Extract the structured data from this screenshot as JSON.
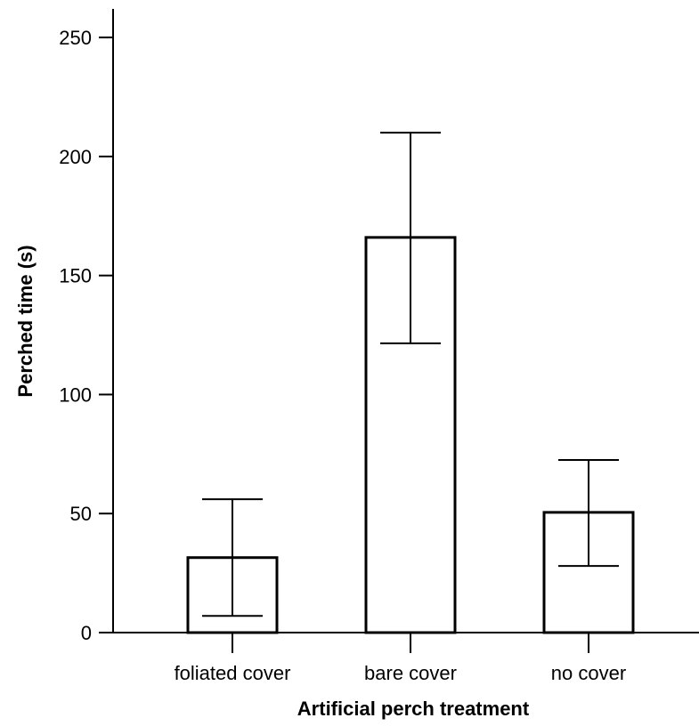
{
  "chart_data": {
    "type": "bar",
    "categories": [
      "foliated cover",
      "bare cover",
      "no cover"
    ],
    "values": [
      31.5,
      166,
      50.5
    ],
    "error_bars": [
      {
        "low": 7,
        "high": 56
      },
      {
        "low": 121.5,
        "high": 210
      },
      {
        "low": 28,
        "high": 72.5
      }
    ],
    "xlabel": "Artificial perch treatment",
    "ylabel": "Perched time (s)",
    "ylim": [
      0,
      262
    ],
    "yticks": [
      0,
      50,
      100,
      150,
      200,
      250
    ],
    "grid": false,
    "bar_fill": "#ffffff",
    "bar_stroke": "#000000"
  }
}
